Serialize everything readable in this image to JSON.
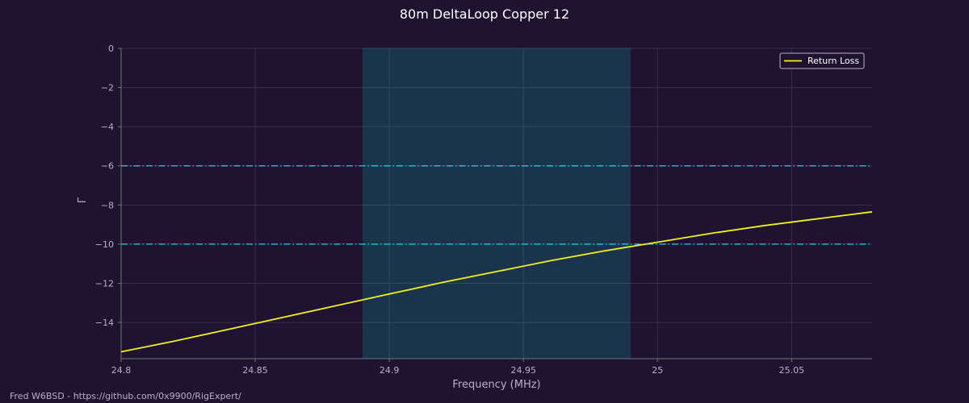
{
  "footer": {
    "credit": "Fred W6BSD - https://github.com/0x9900/RigExpert/"
  },
  "colors": {
    "background": "#1e1330",
    "grid": "#3a3046",
    "axis": "#6f7a6a",
    "band": "#1a384e",
    "threshold": "#18d6e8",
    "series": "#f4f01f",
    "text": "#b9b0c8"
  },
  "chart_data": {
    "type": "line",
    "title": "80m DeltaLoop Copper 12",
    "xlabel": "Frequency (MHz)",
    "ylabel": "Γ",
    "xlim": [
      24.8,
      25.08
    ],
    "ylim": [
      -15.85,
      0
    ],
    "xticks": [
      24.8,
      24.85,
      24.9,
      24.95,
      25,
      25.05
    ],
    "xtick_labels": [
      "24.8",
      "24.85",
      "24.9",
      "24.95",
      "25",
      "25.05"
    ],
    "yticks": [
      0,
      -2,
      -4,
      -6,
      -8,
      -10,
      -12,
      -14
    ],
    "ytick_labels": [
      "0",
      "−2",
      "−4",
      "−6",
      "−8",
      "−10",
      "−12",
      "−14"
    ],
    "grid": true,
    "legend": {
      "placement": "top-right"
    },
    "band": {
      "x_start": 24.89,
      "x_end": 24.99
    },
    "hlines": [
      {
        "y": -6,
        "style": "dash-dot"
      },
      {
        "y": -10,
        "style": "dash-dot"
      }
    ],
    "series": [
      {
        "name": "Return Loss",
        "x": [
          24.8,
          24.82,
          24.84,
          24.86,
          24.88,
          24.9,
          24.92,
          24.94,
          24.96,
          24.98,
          25.0,
          25.02,
          25.04,
          25.06,
          25.08
        ],
        "y": [
          -15.5,
          -14.95,
          -14.35,
          -13.75,
          -13.15,
          -12.55,
          -11.95,
          -11.4,
          -10.85,
          -10.35,
          -9.9,
          -9.45,
          -9.05,
          -8.7,
          -8.35
        ]
      }
    ]
  }
}
